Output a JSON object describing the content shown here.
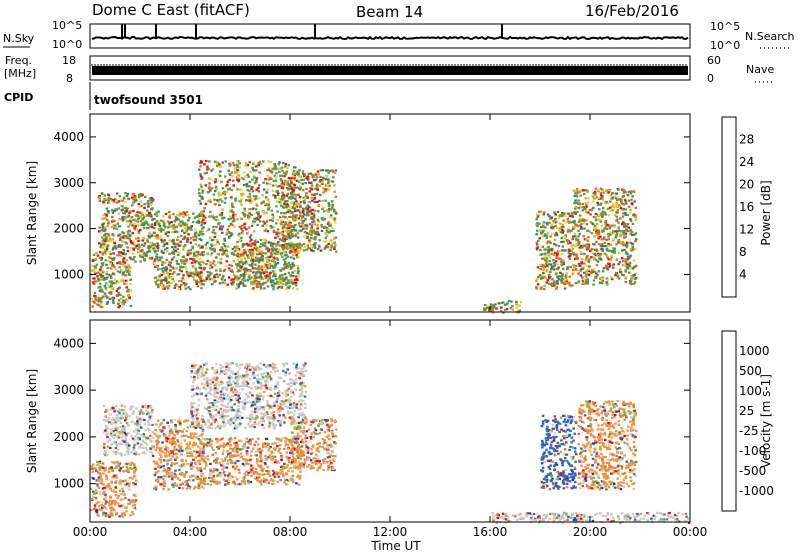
{
  "header": {
    "station": "Dome C East (fitACF)",
    "beam": "Beam 14",
    "date": "16/Feb/2016"
  },
  "status_panels": {
    "nsky_label": "N.Sky",
    "nsky_ticks": [
      "10^5",
      "10^0"
    ],
    "nsearch_label": "N.Search",
    "nsearch_ticks": [
      "10^5",
      "10^0"
    ],
    "freq_label_1": "Freq.",
    "freq_label_2": "[MHz]",
    "freq_ticks": [
      "18",
      "8"
    ],
    "nave_label": "Nave",
    "nave_ticks": [
      "60",
      "0"
    ],
    "cpid_label": "CPID",
    "cpid_value": "twofsound 3501"
  },
  "chart_data": [
    {
      "type": "heatmap",
      "name": "power",
      "ylabel": "Slant Range [km]",
      "xlabel": "Time UT",
      "x_ticks": [
        "00:00",
        "04:00",
        "08:00",
        "12:00",
        "16:00",
        "20:00",
        "00:00"
      ],
      "y_ticks": [
        1000,
        2000,
        3000,
        4000
      ],
      "xlim_hours": [
        0,
        24
      ],
      "ylim_km": [
        180,
        4500
      ],
      "colorbar": {
        "label": "Power [dB]",
        "ticks": [
          "28",
          "24",
          "20",
          "16",
          "12",
          "8",
          "4"
        ],
        "colors": [
          "#0000ff",
          "#2050c8",
          "#3a7a6a",
          "#4a9a50",
          "#d8d830",
          "#e8a020",
          "#f06018",
          "#ff0000"
        ]
      },
      "regions": [
        {
          "t0": 0.0,
          "t1": 0.6,
          "r0": 300,
          "r1": 1500,
          "level": "12-16 dB"
        },
        {
          "t0": 0.6,
          "t1": 1.6,
          "r0": 300,
          "r1": 1300,
          "level": "24-28 dB"
        },
        {
          "t0": 0.3,
          "t1": 2.5,
          "r0": 1300,
          "r1": 2800,
          "level": "8-12 dB"
        },
        {
          "t0": 2.5,
          "t1": 4.5,
          "r0": 700,
          "r1": 2400,
          "level": "16-24 dB"
        },
        {
          "t0": 4.3,
          "t1": 8.2,
          "r0": 800,
          "r1": 3500,
          "level": "12-20 dB"
        },
        {
          "t0": 5.8,
          "t1": 8.3,
          "r0": 700,
          "r1": 1700,
          "level": "20-28 dB"
        },
        {
          "t0": 7.6,
          "t1": 9.8,
          "r0": 1500,
          "r1": 3300,
          "level": "16-20 dB"
        },
        {
          "t0": 15.7,
          "t1": 17.2,
          "r0": 180,
          "r1": 450,
          "level": "4-8 dB"
        },
        {
          "t0": 17.8,
          "t1": 19.3,
          "r0": 700,
          "r1": 2400,
          "level": "20-28 dB"
        },
        {
          "t0": 19.3,
          "t1": 21.8,
          "r0": 800,
          "r1": 2900,
          "level": "16-24 dB"
        }
      ]
    },
    {
      "type": "heatmap",
      "name": "velocity",
      "ylabel": "Slant Range [km]",
      "xlabel": "Time UT",
      "x_ticks": [
        "00:00",
        "04:00",
        "08:00",
        "12:00",
        "16:00",
        "20:00",
        "00:00"
      ],
      "y_ticks": [
        1000,
        2000,
        3000,
        4000
      ],
      "xlim_hours": [
        0,
        24
      ],
      "ylim_km": [
        180,
        4500
      ],
      "colorbar": {
        "label": "Velocity [m s-1]",
        "ticks": [
          "1000",
          "500",
          "100",
          "25",
          "-25",
          "-100",
          "-500",
          "-1000"
        ],
        "colors": [
          "#ff0000",
          "#f06020",
          "#f09040",
          "#f0d080",
          "#c8c8c8",
          "#60c840",
          "#3a8a6a",
          "#3060c0",
          "#1040c0"
        ]
      },
      "regions": [
        {
          "t0": 0.0,
          "t1": 1.8,
          "r0": 300,
          "r1": 1500,
          "level": "-100 to -500 m/s"
        },
        {
          "t0": 0.5,
          "t1": 2.5,
          "r0": 1600,
          "r1": 2700,
          "level": "-25 to 25 m/s"
        },
        {
          "t0": 2.5,
          "t1": 4.5,
          "r0": 900,
          "r1": 2400,
          "level": "-100 to -500 m/s"
        },
        {
          "t0": 4.3,
          "t1": 8.4,
          "r0": 1000,
          "r1": 2000,
          "level": "-100 to -500 m/s"
        },
        {
          "t0": 4.0,
          "t1": 8.6,
          "r0": 2200,
          "r1": 3600,
          "level": "-25 to 25 m/s"
        },
        {
          "t0": 8.0,
          "t1": 9.8,
          "r0": 1300,
          "r1": 2400,
          "level": "-100 m/s"
        },
        {
          "t0": 18.0,
          "t1": 19.4,
          "r0": 900,
          "r1": 2500,
          "level": "500-1000 m/s"
        },
        {
          "t0": 19.5,
          "t1": 21.8,
          "r0": 900,
          "r1": 2800,
          "level": "-25 to 100 m/s"
        },
        {
          "t0": 16.0,
          "t1": 24.0,
          "r0": 180,
          "r1": 400,
          "level": "-25 to 25 m/s"
        }
      ]
    }
  ]
}
